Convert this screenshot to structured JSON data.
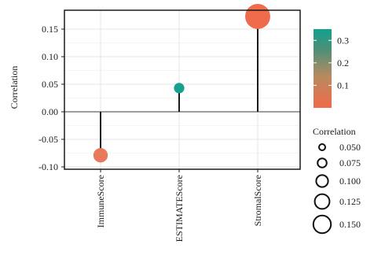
{
  "chart_data": {
    "type": "lollipop",
    "ylabel": "Correlation",
    "xlabel": "",
    "categories": [
      "ImmuneScore",
      "ESTIMATEScore",
      "StromalScore"
    ],
    "values": [
      -0.079,
      0.043,
      0.173
    ],
    "ylim": [
      -0.1,
      0.18
    ],
    "yticks": [
      -0.1,
      -0.05,
      0.0,
      0.05,
      0.1,
      0.15
    ],
    "ytick_labels": [
      "-0.10",
      "-0.05",
      "0.00",
      "0.05",
      "0.10",
      "0.15"
    ],
    "grid": true,
    "baseline": 0,
    "color_legend": {
      "title": "",
      "ticks": [
        0.3,
        0.2,
        0.1
      ],
      "tick_labels": [
        "0.3",
        "0.2",
        "0.1"
      ],
      "colors": [
        "#f0694a",
        "#b98a5e",
        "#4b8f7a",
        "#11a28c"
      ],
      "range": [
        0.0,
        0.35
      ]
    },
    "size_legend": {
      "title": "Correlation",
      "values": [
        0.05,
        0.075,
        0.1,
        0.125,
        0.15
      ],
      "labels": [
        "0.050",
        "0.075",
        "0.100",
        "0.125",
        "0.150"
      ]
    },
    "point_colors": [
      "#e8795b",
      "#17a08d",
      "#ef6b4b"
    ]
  }
}
